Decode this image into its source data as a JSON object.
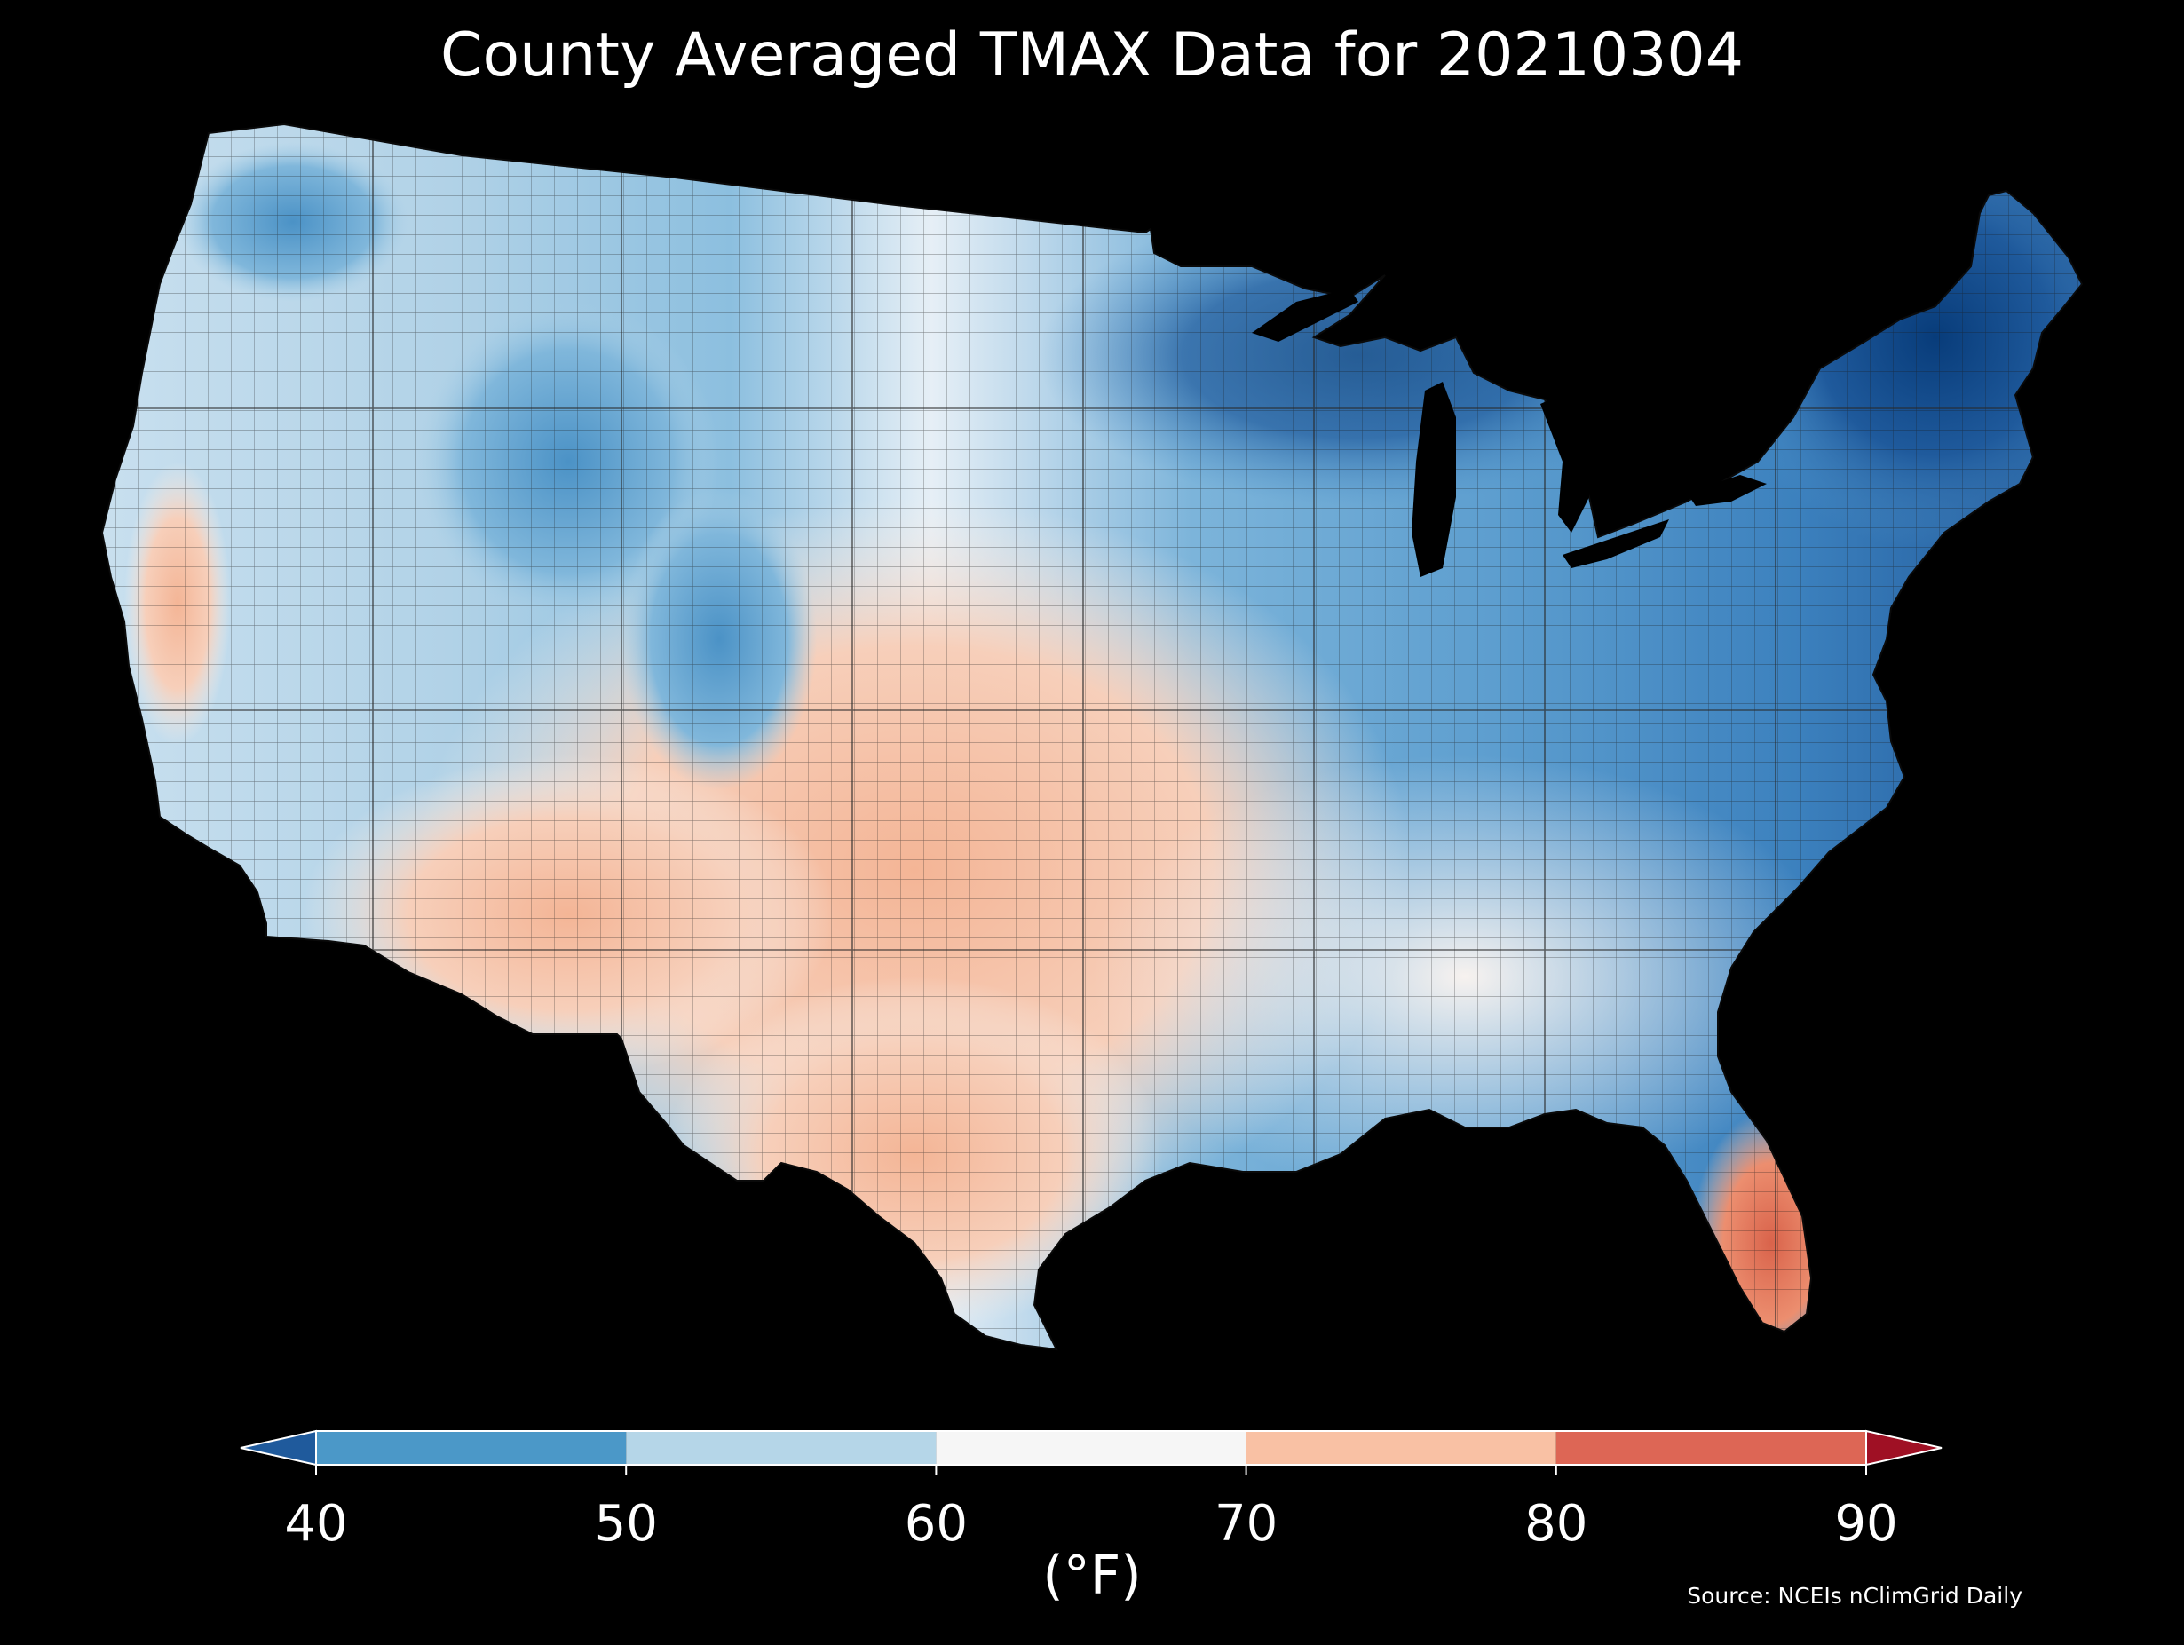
{
  "title": "County Averaged TMAX Data for 20210304",
  "colorbar": {
    "bins": [
      {
        "min": 40,
        "max": 50,
        "color": "#4b98c8"
      },
      {
        "min": 50,
        "max": 60,
        "color": "#b5d6e8"
      },
      {
        "min": 60,
        "max": 70,
        "color": "#f6f6f6"
      },
      {
        "min": 70,
        "max": 80,
        "color": "#f9c1a4"
      },
      {
        "min": 80,
        "max": 90,
        "color": "#dd6655"
      }
    ],
    "under_color": "#1f5a9c",
    "over_color": "#9f1024",
    "ticks": [
      "40",
      "50",
      "60",
      "70",
      "80",
      "90"
    ],
    "unit": "(°F)"
  },
  "map": {
    "background": "#000000",
    "ocean_color": "#000000",
    "regions": [
      {
        "area": "Pacific Northwest",
        "color": "#b9d7ea"
      },
      {
        "area": "Montana / Idaho Rockies",
        "color": "#6aa8d3"
      },
      {
        "area": "Wyoming / Colorado Rockies",
        "color": "#5a9fcf"
      },
      {
        "area": "California Central Valley",
        "color": "#f4cbb6"
      },
      {
        "area": "Great Basin",
        "color": "#c7dfee"
      },
      {
        "area": "Desert Southwest",
        "color": "#f4b698"
      },
      {
        "area": "Southern Plains / Texas",
        "color": "#f6c2a6"
      },
      {
        "area": "Central Plains",
        "color": "#f7e6dd"
      },
      {
        "area": "Upper Midwest / Great Lakes",
        "color": "#3a84c0"
      },
      {
        "area": "Northeast / New England",
        "color": "#1c5395"
      },
      {
        "area": "Ohio Valley / Mid-Atlantic",
        "color": "#dde9f2"
      },
      {
        "area": "Southeast",
        "color": "#f1f1f2"
      },
      {
        "area": "South Florida",
        "color": "#e98060"
      }
    ]
  },
  "source": "Source: NCEIs nClimGrid Daily"
}
